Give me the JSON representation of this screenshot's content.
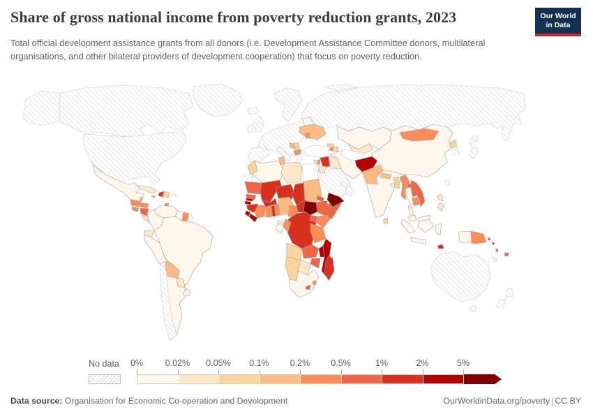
{
  "header": {
    "title": "Share of gross national income from poverty reduction grants, 2023",
    "subtitle": "Total official development assistance grants from all donors (i.e. Development Assistance Committee donors, multilateral organisations, and other bilateral providers of development cooperation) that focus on poverty reduction.",
    "logo": {
      "line1": "Our World",
      "line2": "in Data",
      "bg_color": "#12304f",
      "accent_color": "#cf2429"
    }
  },
  "legend": {
    "no_data_label": "No data",
    "tick_labels": [
      "0%",
      "0.02%",
      "0.05%",
      "0.1%",
      "0.2%",
      "0.5%",
      "1%",
      "2%",
      "5%"
    ]
  },
  "chart_data": {
    "type": "choropleth",
    "title": "Share of gross national income from poverty reduction grants",
    "year": 2023,
    "unit": "% of gross national income",
    "bin_edges_percent": [
      0,
      0.02,
      0.05,
      0.1,
      0.2,
      0.5,
      1,
      2,
      5
    ],
    "bin_labels": [
      "0-0.02%",
      "0.02-0.05%",
      "0.05-0.1%",
      "0.1-0.2%",
      "0.2-0.5%",
      "0.5-1%",
      "1-2%",
      "2-5%",
      ">5%"
    ],
    "bin_colors": [
      "#fff7ec",
      "#fee8c8",
      "#fdd49e",
      "#fdbb84",
      "#fc8d59",
      "#ef6548",
      "#d7301f",
      "#b30000",
      "#7f0000"
    ],
    "no_data": {
      "label": "No data",
      "style": "hatched"
    },
    "zero_color": "#ffffff",
    "countries": {
      "canada": "ND",
      "usa": "ND",
      "greenland": "ND",
      "iceland": "ND",
      "europe": "ND",
      "russia": "ND",
      "puerto-rico": "ND",
      "saudi-arabia": "ND",
      "gulf-states": "ND",
      "oman": "ND",
      "south-korea": "ND",
      "japan": "ND",
      "taiwan": "ND",
      "australia": "ND",
      "new-zealand": "ND",
      "new-caledonia": "ND",
      "western-sahara": "ND",
      "chile": "ND",
      "french-guiana": "ND",
      "turkey": "W",
      "egypt": "W",
      "turkmenistan": "W",
      "israel": "W",
      "mexico": 0,
      "guatemala": 4,
      "belize": 3,
      "honduras": 4,
      "el-salvador": 4,
      "nicaragua": 5,
      "costa-rica": 1,
      "panama": 1,
      "cuba": 1,
      "jamaica": 3,
      "haiti": 6,
      "dominican-republic": 2,
      "trinidad-and-tobago": 4,
      "venezuela": 0,
      "colombia": 0,
      "guyana": 0,
      "suriname": 4,
      "ecuador": 1,
      "peru": 0,
      "brazil": 0,
      "bolivia": 3,
      "paraguay": 1,
      "argentina": 0,
      "uruguay": 0,
      "belarus": 0,
      "ukraine": 3,
      "moldova": 4,
      "serbia": 2,
      "bosnia": 3,
      "albania": 4,
      "north-macedonia": 4,
      "morocco": 2,
      "algeria": 0,
      "tunisia": 3,
      "libya": 1,
      "mauritania": 5,
      "mali": 6,
      "niger": 6,
      "chad": 6,
      "sudan": 3,
      "south-sudan": 8,
      "eritrea": 5,
      "djibouti": 6,
      "ethiopia": 5,
      "somalia": 5,
      "senegal": 5,
      "gambia": 7,
      "guinea-bissau": 7,
      "guinea": 6,
      "sierra-leone": 7,
      "liberia": 7,
      "cote-divoire": 4,
      "burkina-faso": 6,
      "ghana": 4,
      "togo": 6,
      "benin": 4,
      "nigeria": 3,
      "cameroon": 4,
      "central-african-republic": 6,
      "uganda": 5,
      "kenya": 4,
      "rwanda": 7,
      "burundi": 7,
      "dr-congo": 6,
      "congo": 4,
      "gabon": 0,
      "equatorial-guinea": 0,
      "angola": 2,
      "zambia": 5,
      "tanzania": 4,
      "malawi": 7,
      "mozambique": 7,
      "zimbabwe": 5,
      "botswana": 1,
      "namibia": 2,
      "south-africa": 0,
      "lesotho": 5,
      "eswatini": 4,
      "madagascar": 6,
      "syria": 6,
      "lebanon": 4,
      "jordan": 1,
      "iraq": 1,
      "yemen": 8,
      "iran": 0,
      "armenia": 4,
      "azerbaijan": 2,
      "georgia": 2,
      "cyprus": 1,
      "kazakhstan": 0,
      "uzbekistan": 1,
      "kyrgyzstan": 4,
      "tajikistan": 5,
      "afghanistan": 7,
      "pakistan": 3,
      "china": 0,
      "mongolia": 4,
      "india": 0,
      "nepal": 3,
      "bhutan": 2,
      "bangladesh": 2,
      "sri-lanka": 2,
      "myanmar": 4,
      "vietnam": 5,
      "laos": 5,
      "thailand": 0,
      "cambodia": 4,
      "north-korea": 2,
      "philippines": 1,
      "malaysia": 0,
      "indonesia": 0,
      "papua-new-guinea": 4,
      "timor-leste": 6,
      "solomon-islands": 6,
      "vanuatu": 6,
      "fiji": 5
    }
  },
  "footer": {
    "source_label": "Data source:",
    "source_value": "Organisation for Economic Co-operation and Development",
    "url": "OurWorldinData.org/poverty",
    "separator": "|",
    "license": "CC BY"
  }
}
